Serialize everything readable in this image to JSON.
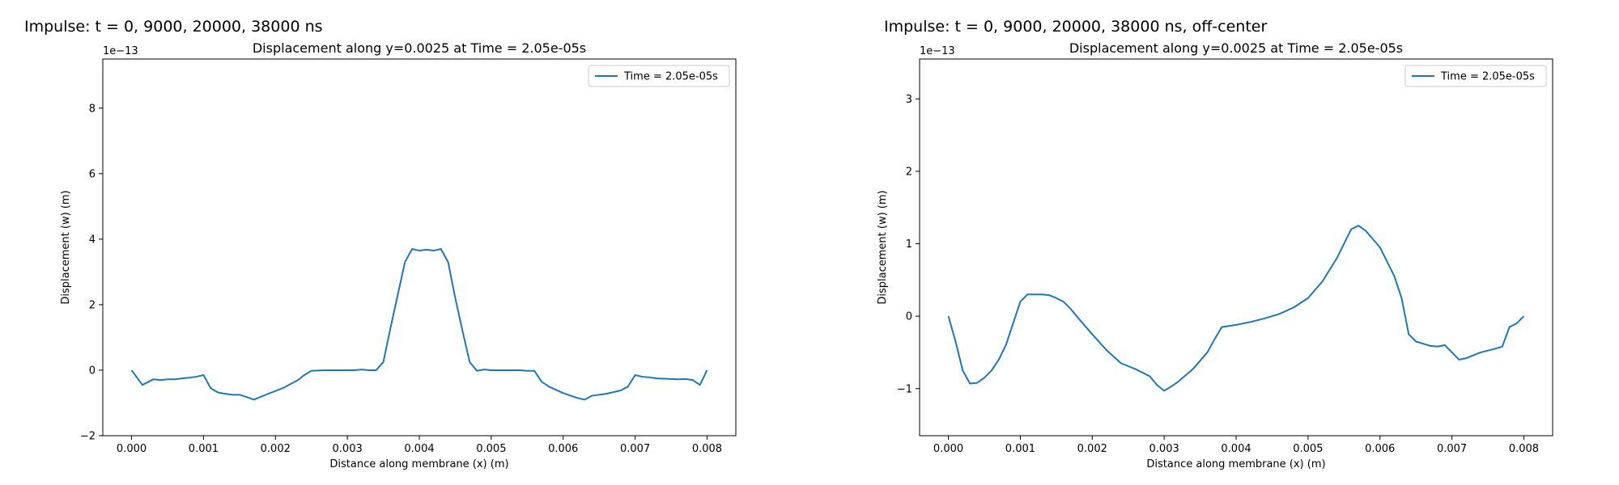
{
  "panels": [
    {
      "heading": "Impulse: t = 0, 9000, 20000, 38000 ns"
    },
    {
      "heading": "Impulse: t = 0, 9000, 20000, 38000 ns, off-center"
    }
  ],
  "chart_data": [
    {
      "type": "line",
      "title": "Displacement along y=0.0025 at Time = 2.05e-05s",
      "xlabel": "Distance along membrane (x) (m)",
      "ylabel": "Displacement (w) (m)",
      "y_multiplier": "1e−13",
      "xlim": [
        -0.0004,
        0.0084
      ],
      "ylim": [
        -2.0,
        9.5
      ],
      "xticks": [
        0.0,
        0.001,
        0.002,
        0.003,
        0.004,
        0.005,
        0.006,
        0.007,
        0.008
      ],
      "xtick_labels": [
        "0.000",
        "0.001",
        "0.002",
        "0.003",
        "0.004",
        "0.005",
        "0.006",
        "0.007",
        "0.008"
      ],
      "yticks": [
        -2,
        0,
        2,
        4,
        6,
        8
      ],
      "ytick_labels": [
        "−2",
        "0",
        "2",
        "4",
        "6",
        "8"
      ],
      "legend_position": "top-right",
      "series_color": "#1f77b4",
      "series": [
        {
          "name": "Time = 2.05e-05s",
          "x": [
            0.0,
            0.00015,
            0.0003,
            0.0004,
            0.0005,
            0.0006,
            0.0007,
            0.0008,
            0.0009,
            0.001,
            0.0011,
            0.0012,
            0.0013,
            0.0014,
            0.0015,
            0.0016,
            0.0017,
            0.0019,
            0.0021,
            0.0023,
            0.0024,
            0.0025,
            0.0027,
            0.0029,
            0.0031,
            0.0032,
            0.0033,
            0.0034,
            0.0035,
            0.0036,
            0.0037,
            0.0038,
            0.0039,
            0.004,
            0.0041,
            0.0042,
            0.0043,
            0.0044,
            0.0045,
            0.0046,
            0.0047,
            0.0048,
            0.0049,
            0.005,
            0.0051,
            0.0052,
            0.0053,
            0.0054,
            0.0055,
            0.0056,
            0.0057,
            0.0058,
            0.006,
            0.0062,
            0.0063,
            0.0064,
            0.0066,
            0.0068,
            0.0069,
            0.007,
            0.0071,
            0.0072,
            0.0073,
            0.0074,
            0.0075,
            0.0076,
            0.0077,
            0.0078,
            0.0079,
            0.008
          ],
          "y": [
            0.0,
            -0.45,
            -0.28,
            -0.3,
            -0.28,
            -0.28,
            -0.25,
            -0.23,
            -0.2,
            -0.15,
            -0.55,
            -0.68,
            -0.72,
            -0.75,
            -0.75,
            -0.82,
            -0.9,
            -0.72,
            -0.55,
            -0.32,
            -0.15,
            -0.02,
            0.0,
            0.0,
            0.0,
            0.02,
            0.0,
            0.0,
            0.25,
            1.3,
            2.3,
            3.3,
            3.7,
            3.65,
            3.68,
            3.65,
            3.7,
            3.3,
            2.2,
            1.2,
            0.25,
            -0.02,
            0.02,
            0.0,
            0.0,
            0.0,
            0.0,
            0.0,
            -0.02,
            -0.02,
            -0.35,
            -0.5,
            -0.7,
            -0.85,
            -0.9,
            -0.78,
            -0.72,
            -0.62,
            -0.5,
            -0.15,
            -0.2,
            -0.22,
            -0.25,
            -0.26,
            -0.27,
            -0.28,
            -0.27,
            -0.3,
            -0.45,
            0.0
          ]
        }
      ]
    },
    {
      "type": "line",
      "title": "Displacement along y=0.0025 at Time = 2.05e-05s",
      "xlabel": "Distance along membrane (x) (m)",
      "ylabel": "Displacement (w) (m)",
      "y_multiplier": "1e−13",
      "xlim": [
        -0.0004,
        0.0084
      ],
      "ylim": [
        -1.65,
        3.55
      ],
      "xticks": [
        0.0,
        0.001,
        0.002,
        0.003,
        0.004,
        0.005,
        0.006,
        0.007,
        0.008
      ],
      "xtick_labels": [
        "0.000",
        "0.001",
        "0.002",
        "0.003",
        "0.004",
        "0.005",
        "0.006",
        "0.007",
        "0.008"
      ],
      "yticks": [
        -1,
        0,
        1,
        2,
        3
      ],
      "ytick_labels": [
        "−1",
        "0",
        "1",
        "2",
        "3"
      ],
      "legend_position": "top-right",
      "series_color": "#1f77b4",
      "series": [
        {
          "name": "Time = 2.05e-05s",
          "x": [
            0.0,
            0.0001,
            0.0002,
            0.0003,
            0.0004,
            0.0005,
            0.0006,
            0.0007,
            0.0008,
            0.0009,
            0.001,
            0.0011,
            0.0012,
            0.0013,
            0.0014,
            0.0015,
            0.0016,
            0.0017,
            0.0018,
            0.002,
            0.0022,
            0.0024,
            0.0026,
            0.0028,
            0.0029,
            0.003,
            0.0031,
            0.0032,
            0.0034,
            0.0036,
            0.0037,
            0.0038,
            0.004,
            0.0042,
            0.0044,
            0.0046,
            0.0048,
            0.005,
            0.0052,
            0.0054,
            0.0055,
            0.0056,
            0.0057,
            0.0058,
            0.006,
            0.0062,
            0.0063,
            0.0064,
            0.0065,
            0.0066,
            0.0067,
            0.0068,
            0.0069,
            0.007,
            0.0071,
            0.0072,
            0.0074,
            0.0076,
            0.0077,
            0.0078,
            0.0079,
            0.008
          ],
          "y": [
            0.0,
            -0.35,
            -0.75,
            -0.93,
            -0.92,
            -0.85,
            -0.75,
            -0.6,
            -0.4,
            -0.1,
            0.2,
            0.3,
            0.3,
            0.3,
            0.29,
            0.25,
            0.2,
            0.1,
            -0.02,
            -0.25,
            -0.47,
            -0.65,
            -0.73,
            -0.83,
            -0.95,
            -1.03,
            -0.97,
            -0.9,
            -0.73,
            -0.5,
            -0.32,
            -0.15,
            -0.12,
            -0.08,
            -0.03,
            0.03,
            0.12,
            0.25,
            0.48,
            0.8,
            1.0,
            1.2,
            1.25,
            1.18,
            0.95,
            0.55,
            0.25,
            -0.25,
            -0.35,
            -0.38,
            -0.41,
            -0.42,
            -0.4,
            -0.5,
            -0.6,
            -0.58,
            -0.5,
            -0.45,
            -0.42,
            -0.15,
            -0.1,
            0.0
          ]
        }
      ]
    }
  ]
}
